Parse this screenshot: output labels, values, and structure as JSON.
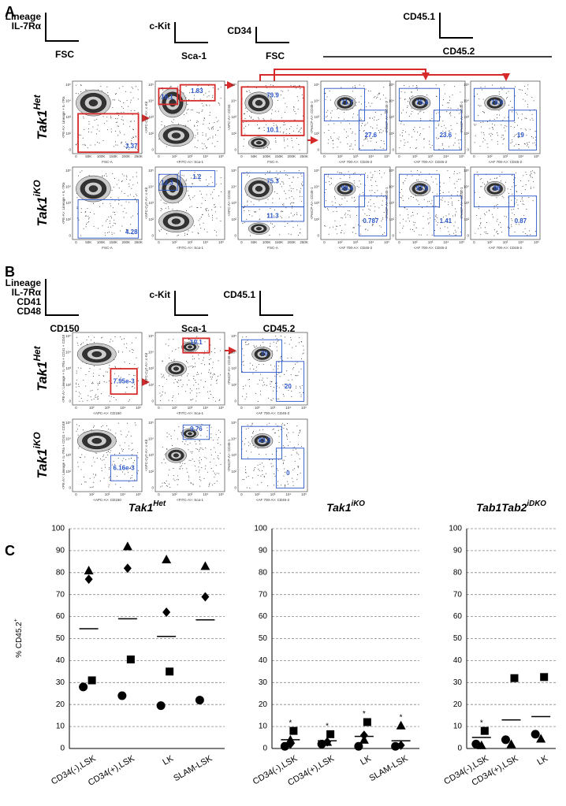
{
  "panels": {
    "A": {
      "label": "A",
      "headers": [
        {
          "y": [
            "Lineage",
            "IL-7Rα"
          ],
          "x": "FSC"
        },
        {
          "y": [
            "c-Kit"
          ],
          "x": "Sca-1"
        },
        {
          "y": [
            "CD34"
          ],
          "x": "FSC"
        },
        {
          "y": [
            "CD45.1"
          ],
          "x": "CD45.2"
        }
      ],
      "columns": [
        {
          "x": "FSC-A",
          "y": "<PE-A>: Lineage + IL-7Ra"
        },
        {
          "x": "<FITC-A>: Sca-1",
          "y": "<APC-Cy7-A>: c-Kit"
        },
        {
          "x": "FSC-A",
          "y": "<APC-A>: CD34"
        },
        {
          "x": "<AF 700-A>: CD45-2",
          "y": "<PerCP-A>: CD45-1"
        },
        {
          "x": "<AF 700-A>: CD45-2",
          "y": "<PerCP-A>: CD45-1"
        },
        {
          "x": "<AF 700-A>: CD45-2",
          "y": "<PerCP-A>: CD45-1"
        }
      ],
      "rows": [
        {
          "label": "Tak1",
          "label_sup": "Het",
          "gates": [
            [
              "3.37"
            ],
            [
              "16.1",
              "1.83"
            ],
            [
              "79.9",
              "10.1"
            ],
            [
              "71.7",
              "27.6"
            ],
            [
              "75.4",
              "23.6"
            ],
            [
              "78.9",
              "19"
            ]
          ]
        },
        {
          "label": "Tak1",
          "label_sup": "iKO",
          "gates": [
            [
              "4.28"
            ],
            [
              "12.3",
              "1.2"
            ],
            [
              "75.3",
              "11.3"
            ],
            [
              "98.4",
              "0.787"
            ],
            [
              "97.9",
              "1.41"
            ],
            [
              "98",
              "0.87"
            ]
          ]
        }
      ]
    },
    "B": {
      "label": "B",
      "headers": [
        {
          "y": [
            "Lineage",
            "IL-7Rα",
            "CD41",
            "CD48"
          ],
          "x": "CD150"
        },
        {
          "y": [
            "c-Kit"
          ],
          "x": "Sca-1"
        },
        {
          "y": [
            "CD45.1"
          ],
          "x": "CD45.2"
        }
      ],
      "columns": [
        {
          "x": "<APC-A>: CD150",
          "y": "<PE-A>: Lineage + IL-7Ra + CD41 + CD48"
        },
        {
          "x": "<FITC-A>: Sca-1",
          "y": "<APC-Cy7-A>: c-Kit"
        },
        {
          "x": "<AF 700-A>: CD45-2",
          "y": "<PerCP-A>: CD45-1"
        }
      ],
      "rows": [
        {
          "label": "Tak1",
          "label_sup": "Het",
          "gates": [
            [
              "7.95e-3"
            ],
            [
              "19.1"
            ],
            [
              "70",
              "20"
            ]
          ]
        },
        {
          "label": "Tak1",
          "label_sup": "iKO",
          "gates": [
            [
              "6.16e-3"
            ],
            [
              "9.76"
            ],
            [
              "83.3",
              "0"
            ]
          ]
        }
      ]
    },
    "C": {
      "label": "C",
      "ylabel": "% CD45.2",
      "ylabel_sup": "+"
    }
  },
  "tick_sets": {
    "linear": [
      "0",
      "50K",
      "100K",
      "150K",
      "200K",
      "250K"
    ],
    "log": [
      "0",
      "10²",
      "10³",
      "10⁴",
      "10⁵"
    ]
  },
  "chart_data": [
    {
      "type": "scatter",
      "title": "Tak1",
      "title_sup": "Het",
      "categories": [
        "CD34(-),LSK",
        "CD34(+),LSK",
        "LK",
        "SLAM-LSK"
      ],
      "series": [
        {
          "marker": "circle",
          "values": [
            28,
            24,
            19.5,
            22
          ]
        },
        {
          "marker": "square",
          "values": [
            31,
            40.5,
            35,
            null
          ]
        },
        {
          "marker": "triangle",
          "values": [
            81,
            92,
            86,
            83
          ]
        },
        {
          "marker": "diamond",
          "values": [
            77,
            82,
            62,
            69
          ]
        }
      ],
      "means": [
        54.5,
        59,
        51,
        58.5
      ],
      "annotations": [
        null,
        null,
        null,
        null
      ],
      "ylim": [
        0,
        100
      ],
      "yticks": [
        0,
        10,
        20,
        30,
        40,
        50,
        60,
        70,
        80,
        90,
        100
      ],
      "grid": true
    },
    {
      "type": "scatter",
      "title": "Tak1",
      "title_sup": "iKO",
      "categories": [
        "CD34(-),LSK",
        "CD34(+),LSK",
        "LK",
        "SLAM-LSK"
      ],
      "series": [
        {
          "marker": "circle",
          "values": [
            1,
            2,
            1,
            1
          ]
        },
        {
          "marker": "square",
          "values": [
            8,
            6.5,
            12,
            null
          ]
        },
        {
          "marker": "triangle",
          "values": [
            4,
            3,
            4,
            10.5
          ]
        },
        {
          "marker": "diamond",
          "values": [
            2,
            3,
            6,
            1.5
          ]
        }
      ],
      "means": [
        4,
        3.5,
        5.5,
        3.5
      ],
      "annotations": [
        "*",
        "*",
        "*",
        "*"
      ],
      "ylim": [
        0,
        100
      ],
      "yticks": [
        0,
        10,
        20,
        30,
        40,
        50,
        60,
        70,
        80,
        90,
        100
      ],
      "grid": true
    },
    {
      "type": "scatter",
      "title": "Tab1Tab2",
      "title_sup": "iDKO",
      "categories": [
        "CD34(-),LSK",
        "CD34(+),LSK",
        "LK"
      ],
      "series": [
        {
          "marker": "circle",
          "values": [
            2,
            4,
            6.5
          ]
        },
        {
          "marker": "square",
          "values": [
            8,
            32,
            32.5
          ]
        },
        {
          "marker": "triangle",
          "values": [
            1.5,
            2,
            4.5
          ]
        }
      ],
      "means": [
        5,
        13,
        14.5
      ],
      "annotations": [
        "*",
        null,
        null
      ],
      "ylim": [
        0,
        100
      ],
      "yticks": [
        0,
        10,
        20,
        30,
        40,
        50,
        60,
        70,
        80,
        90,
        100
      ],
      "grid": true
    }
  ]
}
